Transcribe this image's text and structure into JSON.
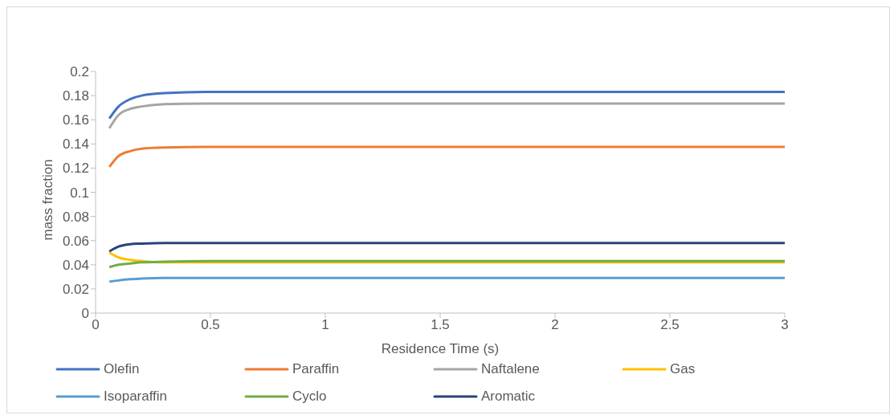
{
  "chart_data": {
    "type": "line",
    "xlabel": "Residence Time (s)",
    "ylabel": "mass fraction",
    "x": [
      0.06,
      0.1,
      0.15,
      0.2,
      0.3,
      0.5,
      1,
      2,
      3
    ],
    "series": [
      {
        "name": "Olefin",
        "color": "#4472c4",
        "values": [
          0.161,
          0.171,
          0.177,
          0.18,
          0.182,
          0.183,
          0.183,
          0.183,
          0.183
        ]
      },
      {
        "name": "Paraffin",
        "color": "#ed7d31",
        "values": [
          0.121,
          0.13,
          0.134,
          0.136,
          0.137,
          0.1375,
          0.1375,
          0.1375,
          0.1375
        ]
      },
      {
        "name": "Naftalene",
        "color": "#a5a5a5",
        "values": [
          0.153,
          0.164,
          0.169,
          0.171,
          0.173,
          0.1735,
          0.1735,
          0.1735,
          0.1735
        ]
      },
      {
        "name": "Gas",
        "color": "#ffc000",
        "values": [
          0.05,
          0.046,
          0.044,
          0.043,
          0.042,
          0.042,
          0.042,
          0.042,
          0.042
        ]
      },
      {
        "name": "Isoparaffin",
        "color": "#5b9bd5",
        "values": [
          0.026,
          0.027,
          0.028,
          0.0285,
          0.029,
          0.029,
          0.029,
          0.029,
          0.029
        ]
      },
      {
        "name": "Cyclo",
        "color": "#70ad47",
        "values": [
          0.038,
          0.04,
          0.041,
          0.042,
          0.0425,
          0.043,
          0.043,
          0.043,
          0.043
        ]
      },
      {
        "name": "Aromatic",
        "color": "#264478",
        "values": [
          0.051,
          0.055,
          0.057,
          0.0575,
          0.058,
          0.058,
          0.058,
          0.058,
          0.058
        ]
      }
    ],
    "xlim": [
      0,
      3
    ],
    "xticks": [
      0,
      0.5,
      1,
      1.5,
      2,
      2.5,
      3
    ],
    "ylim": [
      0,
      0.2
    ],
    "yticks": [
      0,
      0.02,
      0.04,
      0.06,
      0.08,
      0.1,
      0.12,
      0.14,
      0.16,
      0.18,
      0.2
    ],
    "grid": false,
    "legend": "bottom",
    "marker": "none",
    "line_style": "solid"
  }
}
